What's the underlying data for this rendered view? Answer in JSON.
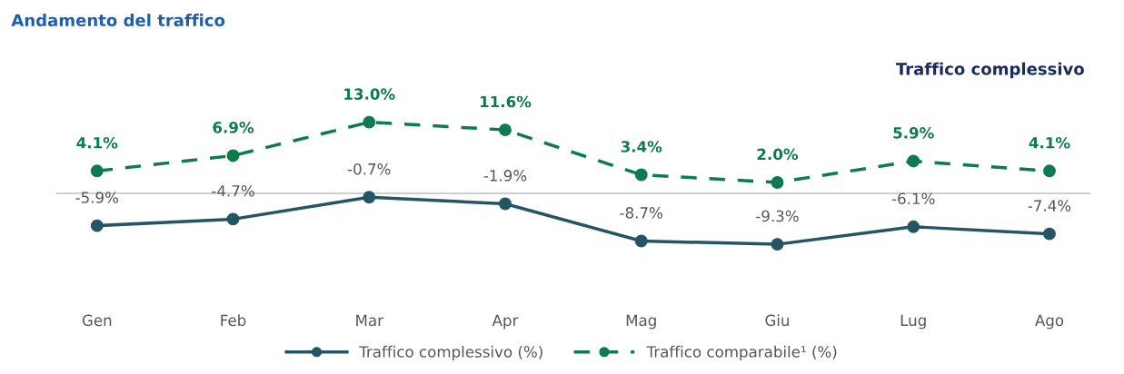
{
  "chart_data": {
    "type": "line",
    "title": "Andamento del traffico",
    "subtitle": "Traffico complessivo",
    "categories": [
      "Gen",
      "Feb",
      "Mar",
      "Apr",
      "Mag",
      "Giu",
      "Lug",
      "Ago"
    ],
    "series": [
      {
        "name": "Traffico complessivo (%)",
        "color": "#245563",
        "line_style": "solid",
        "values": [
          -5.9,
          -4.7,
          -0.7,
          -1.9,
          -8.7,
          -9.3,
          -6.1,
          -7.4
        ],
        "value_labels": [
          "-5.9%",
          "-4.7%",
          "-0.7%",
          "-1.9%",
          "-8.7%",
          "-9.3%",
          "-6.1%",
          "-7.4%"
        ]
      },
      {
        "name": "Traffico comparabile¹ (%)",
        "color": "#0e7a4f",
        "line_style": "dashed",
        "values": [
          4.1,
          6.9,
          13.0,
          11.6,
          3.4,
          2.0,
          5.9,
          4.1
        ],
        "value_labels": [
          "4.1%",
          "6.9%",
          "13.0%",
          "11.6%",
          "3.4%",
          "2.0%",
          "5.9%",
          "4.1%"
        ]
      }
    ],
    "ref_lines": [
      {
        "axis": "y",
        "value": 0,
        "color": "#bfbfbf"
      }
    ],
    "marker": "circle",
    "grid": false,
    "legend": "bottom",
    "tick_labels": "x"
  }
}
